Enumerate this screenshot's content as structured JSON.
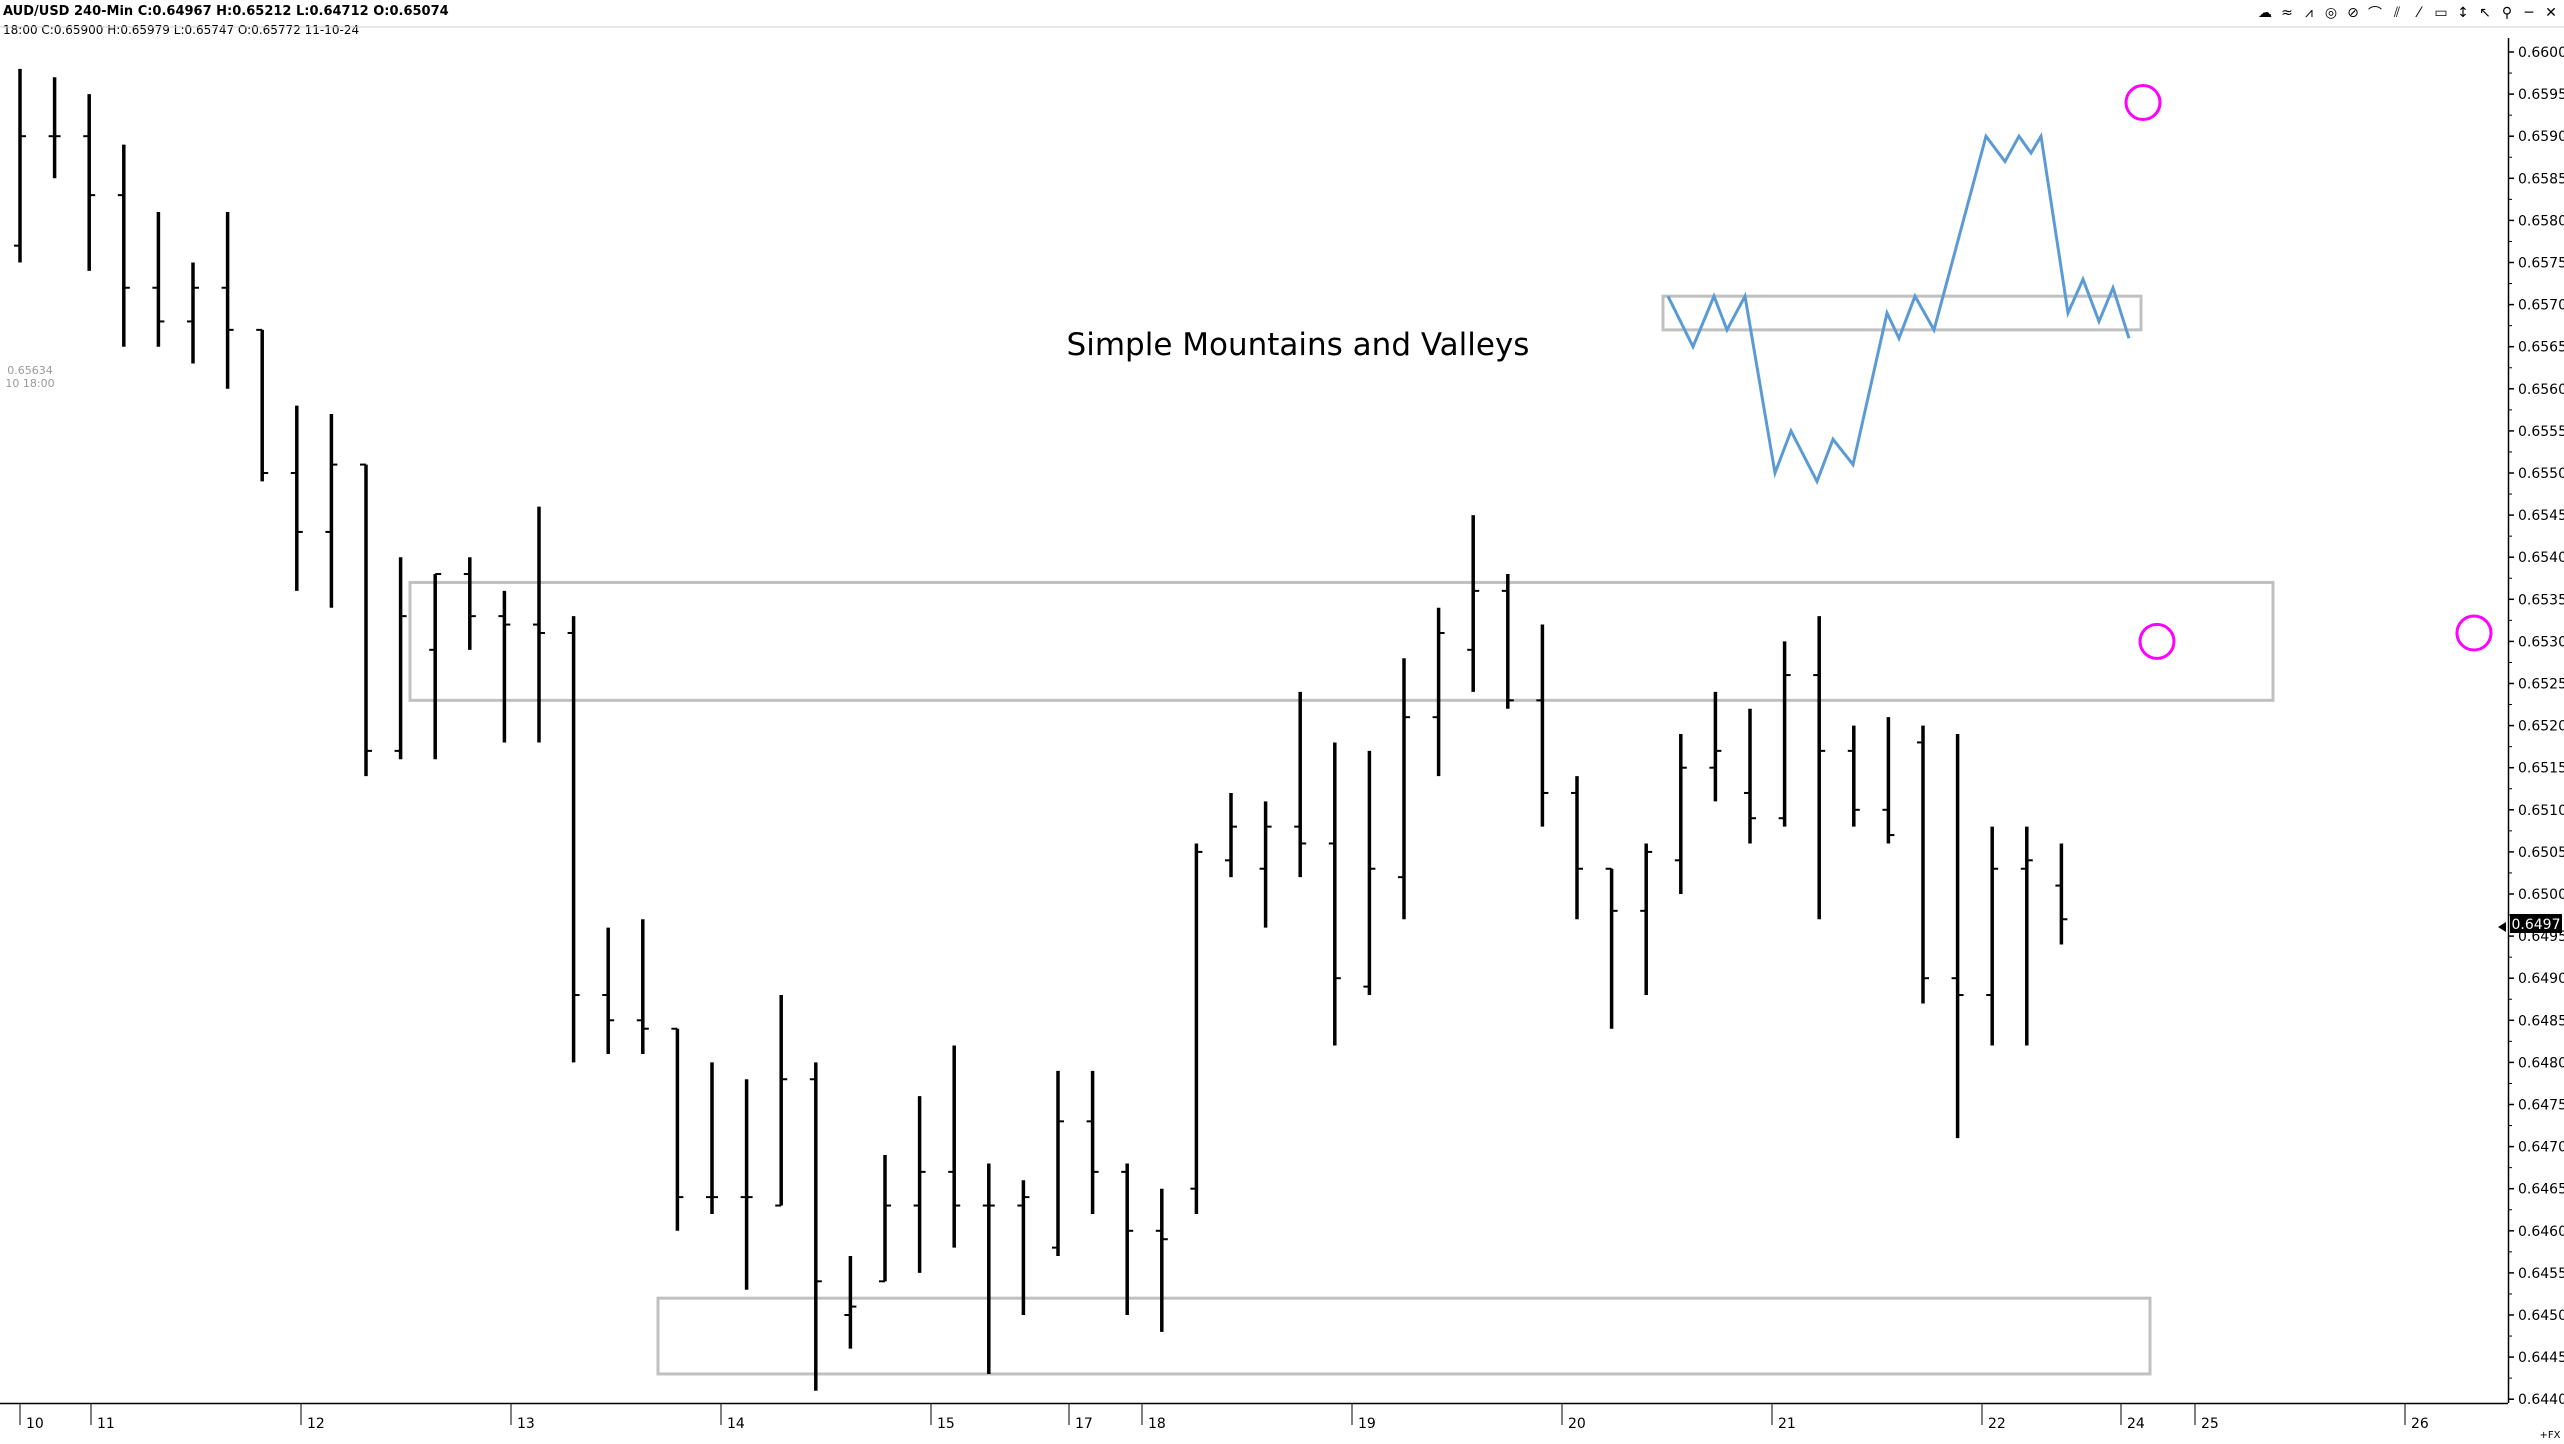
{
  "header": {
    "symbol_line": "AUD/USD  240-Min  C:0.64967  H:0.65212  L:0.64712  O:0.65074",
    "bar_info_line": "18:00  C:0.65900  H:0.65979  L:0.65747  O:0.65772  11-10-24",
    "cursor_price": "0.65634",
    "cursor_time": "10 18:00"
  },
  "toolbar_icons": [
    "chart-type-icon",
    "indicators-icon",
    "drawing-icon",
    "target-icon",
    "line-icon",
    "trendline-icon",
    "fib-icon",
    "pen-icon",
    "highlight-icon",
    "arrow-icon",
    "cursor-icon",
    "pitchfork-icon",
    "minimize-icon",
    "close-icon"
  ],
  "toolbar_glyphs": [
    "☁",
    "≈",
    "⩘",
    "◎",
    "⊘",
    "⌒",
    "⫽",
    "⁄",
    "▭",
    "↕",
    "↖",
    "⚲",
    "─",
    "✕"
  ],
  "annotation": {
    "text": "Simple Mountains and Valleys"
  },
  "price_axis": {
    "labels": [
      "0.6600",
      "0.6595",
      "0.6590",
      "0.6585",
      "0.6580",
      "0.6575",
      "0.6570",
      "0.6565",
      "0.6560",
      "0.6555",
      "0.6550",
      "0.6545",
      "0.6540",
      "0.6535",
      "0.6530",
      "0.6525",
      "0.6520",
      "0.6515",
      "0.6510",
      "0.6505",
      "0.6500",
      "0.6495",
      "0.6490",
      "0.6485",
      "0.6480",
      "0.6475",
      "0.6470",
      "0.6465",
      "0.6460",
      "0.6455",
      "0.6450",
      "0.6445",
      "0.6440"
    ],
    "current_price": "0.6497",
    "footer": "+FX"
  },
  "time_axis": {
    "labels": [
      "10",
      "11",
      "12",
      "13",
      "14",
      "15",
      "17",
      "18",
      "19",
      "20",
      "21",
      "22",
      "24",
      "25",
      "26"
    ]
  },
  "colors": {
    "bars": "#000000",
    "zones": "#c0c0c0",
    "schematic": "#5b9bd5",
    "circles": "#ff00ff",
    "text": "#000000"
  },
  "chart_data": {
    "type": "ohlc",
    "title": "AUD/USD 240-Min",
    "ylim": [
      0.6439,
      0.6601
    ],
    "bars": [
      {
        "o": 0.6577,
        "h": 0.6598,
        "l": 0.6575,
        "c": 0.659
      },
      {
        "o": 0.659,
        "h": 0.6597,
        "l": 0.6585,
        "c": 0.659
      },
      {
        "o": 0.659,
        "h": 0.6595,
        "l": 0.6574,
        "c": 0.6583
      },
      {
        "o": 0.6583,
        "h": 0.6589,
        "l": 0.6565,
        "c": 0.6572
      },
      {
        "o": 0.6572,
        "h": 0.6581,
        "l": 0.6565,
        "c": 0.6568
      },
      {
        "o": 0.6568,
        "h": 0.6575,
        "l": 0.6563,
        "c": 0.6572
      },
      {
        "o": 0.6572,
        "h": 0.6581,
        "l": 0.656,
        "c": 0.6567
      },
      {
        "o": 0.6567,
        "h": 0.6567,
        "l": 0.6549,
        "c": 0.655
      },
      {
        "o": 0.655,
        "h": 0.6558,
        "l": 0.6536,
        "c": 0.6543
      },
      {
        "o": 0.6543,
        "h": 0.6557,
        "l": 0.6534,
        "c": 0.6551
      },
      {
        "o": 0.6551,
        "h": 0.6551,
        "l": 0.6514,
        "c": 0.6517
      },
      {
        "o": 0.6517,
        "h": 0.654,
        "l": 0.6516,
        "c": 0.6533
      },
      {
        "o": 0.6529,
        "h": 0.6538,
        "l": 0.6516,
        "c": 0.6538
      },
      {
        "o": 0.6538,
        "h": 0.654,
        "l": 0.6529,
        "c": 0.6533
      },
      {
        "o": 0.6533,
        "h": 0.6536,
        "l": 0.6518,
        "c": 0.6532
      },
      {
        "o": 0.6532,
        "h": 0.6546,
        "l": 0.6518,
        "c": 0.6531
      },
      {
        "o": 0.6531,
        "h": 0.6533,
        "l": 0.648,
        "c": 0.6488
      },
      {
        "o": 0.6488,
        "h": 0.6496,
        "l": 0.6481,
        "c": 0.6485
      },
      {
        "o": 0.6485,
        "h": 0.6497,
        "l": 0.6481,
        "c": 0.6484
      },
      {
        "o": 0.6484,
        "h": 0.6484,
        "l": 0.646,
        "c": 0.6464
      },
      {
        "o": 0.6464,
        "h": 0.648,
        "l": 0.6462,
        "c": 0.6464
      },
      {
        "o": 0.6464,
        "h": 0.6478,
        "l": 0.6453,
        "c": 0.6464
      },
      {
        "o": 0.6463,
        "h": 0.6488,
        "l": 0.6463,
        "c": 0.6478
      },
      {
        "o": 0.6478,
        "h": 0.648,
        "l": 0.6441,
        "c": 0.6454
      },
      {
        "o": 0.645,
        "h": 0.6457,
        "l": 0.6446,
        "c": 0.6451
      },
      {
        "o": 0.6454,
        "h": 0.6469,
        "l": 0.6454,
        "c": 0.6463
      },
      {
        "o": 0.6463,
        "h": 0.6476,
        "l": 0.6455,
        "c": 0.6467
      },
      {
        "o": 0.6467,
        "h": 0.6482,
        "l": 0.6458,
        "c": 0.6463
      },
      {
        "o": 0.6463,
        "h": 0.6468,
        "l": 0.6443,
        "c": 0.6463
      },
      {
        "o": 0.6463,
        "h": 0.6466,
        "l": 0.645,
        "c": 0.6464
      },
      {
        "o": 0.6458,
        "h": 0.6479,
        "l": 0.6457,
        "c": 0.6473
      },
      {
        "o": 0.6473,
        "h": 0.6479,
        "l": 0.6462,
        "c": 0.6467
      },
      {
        "o": 0.6467,
        "h": 0.6468,
        "l": 0.645,
        "c": 0.646
      },
      {
        "o": 0.646,
        "h": 0.6465,
        "l": 0.6448,
        "c": 0.6459
      },
      {
        "o": 0.6465,
        "h": 0.6506,
        "l": 0.6462,
        "c": 0.6505
      },
      {
        "o": 0.6504,
        "h": 0.6512,
        "l": 0.6502,
        "c": 0.6508
      },
      {
        "o": 0.6503,
        "h": 0.6511,
        "l": 0.6496,
        "c": 0.6508
      },
      {
        "o": 0.6508,
        "h": 0.6524,
        "l": 0.6502,
        "c": 0.6506
      },
      {
        "o": 0.6506,
        "h": 0.6518,
        "l": 0.6482,
        "c": 0.649
      },
      {
        "o": 0.6489,
        "h": 0.6517,
        "l": 0.6488,
        "c": 0.6503
      },
      {
        "o": 0.6502,
        "h": 0.6528,
        "l": 0.6497,
        "c": 0.6521
      },
      {
        "o": 0.6521,
        "h": 0.6534,
        "l": 0.6514,
        "c": 0.6531
      },
      {
        "o": 0.6529,
        "h": 0.6545,
        "l": 0.6524,
        "c": 0.6536
      },
      {
        "o": 0.6536,
        "h": 0.6538,
        "l": 0.6522,
        "c": 0.6523
      },
      {
        "o": 0.6523,
        "h": 0.6532,
        "l": 0.6508,
        "c": 0.6512
      },
      {
        "o": 0.6512,
        "h": 0.6514,
        "l": 0.6497,
        "c": 0.6503
      },
      {
        "o": 0.6503,
        "h": 0.6503,
        "l": 0.6484,
        "c": 0.6498
      },
      {
        "o": 0.6498,
        "h": 0.6506,
        "l": 0.6488,
        "c": 0.6505
      },
      {
        "o": 0.6504,
        "h": 0.6519,
        "l": 0.65,
        "c": 0.6515
      },
      {
        "o": 0.6515,
        "h": 0.6524,
        "l": 0.6511,
        "c": 0.6517
      },
      {
        "o": 0.6512,
        "h": 0.6522,
        "l": 0.6506,
        "c": 0.6509
      },
      {
        "o": 0.6509,
        "h": 0.653,
        "l": 0.6508,
        "c": 0.6526
      },
      {
        "o": 0.6526,
        "h": 0.6533,
        "l": 0.6497,
        "c": 0.6517
      },
      {
        "o": 0.6517,
        "h": 0.652,
        "l": 0.6508,
        "c": 0.651
      },
      {
        "o": 0.651,
        "h": 0.6521,
        "l": 0.6506,
        "c": 0.6507
      },
      {
        "o": 0.6518,
        "h": 0.652,
        "l": 0.6487,
        "c": 0.649
      },
      {
        "o": 0.649,
        "h": 0.6519,
        "l": 0.6471,
        "c": 0.6488
      },
      {
        "o": 0.6488,
        "h": 0.6508,
        "l": 0.6482,
        "c": 0.6503
      },
      {
        "o": 0.6503,
        "h": 0.6508,
        "l": 0.6482,
        "c": 0.6504
      },
      {
        "o": 0.6501,
        "h": 0.6506,
        "l": 0.6494,
        "c": 0.6497
      }
    ],
    "zones": [
      {
        "top": 0.6537,
        "bottom": 0.6523
      },
      {
        "top": 0.6452,
        "bottom": 0.6443
      }
    ],
    "schematic_zone": {
      "top": 0.6571,
      "bottom": 0.6567
    },
    "schematic_path": [
      0.6571,
      0.6565,
      0.6571,
      0.6567,
      0.6571,
      0.655,
      0.6555,
      0.6549,
      0.6554,
      0.6551,
      0.6569,
      0.6566,
      0.6571,
      0.6567,
      0.659,
      0.6587,
      0.659,
      0.6588,
      0.659,
      0.6569,
      0.6573,
      0.6568,
      0.6572,
      0.6566
    ],
    "circle_prices": [
      0.6594,
      0.653,
      0.6531
    ]
  }
}
